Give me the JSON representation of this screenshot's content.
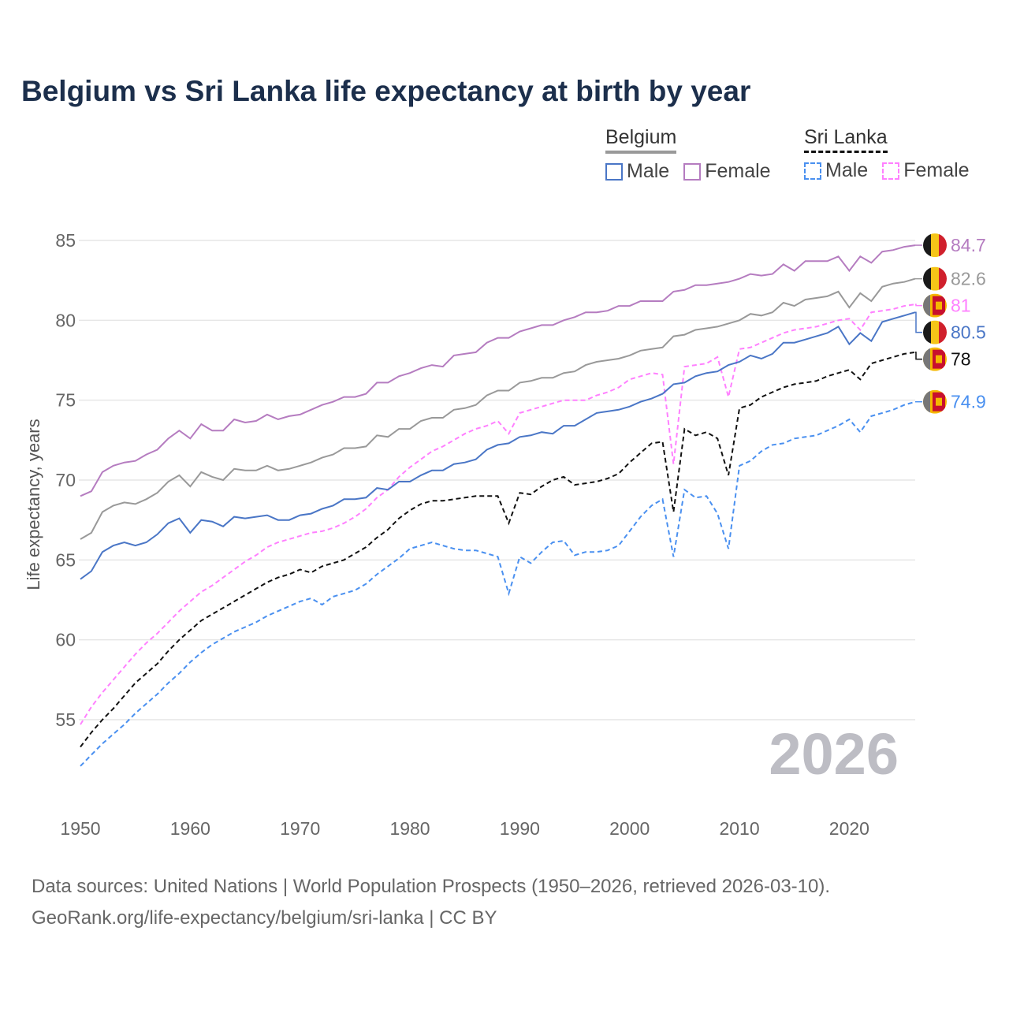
{
  "chart_data": {
    "type": "line",
    "title": "Belgium vs Sri Lanka life expectancy at birth by year",
    "xlabel": "",
    "ylabel": "Life expectancy, years",
    "xlim": [
      1950,
      2026
    ],
    "ylim": [
      51,
      85.5
    ],
    "x_ticks": [
      1950,
      1960,
      1970,
      1980,
      1990,
      2000,
      2010,
      2020
    ],
    "y_ticks": [
      55,
      60,
      65,
      70,
      75,
      80,
      85
    ],
    "year_watermark": "2026",
    "x_start": 1950,
    "legend": {
      "groups": [
        {
          "name": "Belgium",
          "items": [
            "Male",
            "Female"
          ]
        },
        {
          "name": "Sri Lanka",
          "items": [
            "Male",
            "Female"
          ]
        }
      ],
      "placement": "top-right"
    },
    "series": [
      {
        "name": "Belgium Female",
        "country": "Belgium",
        "color": "#b57cc0",
        "dashed": false,
        "end_label": "84.7",
        "values": [
          69.0,
          69.3,
          70.5,
          70.9,
          71.1,
          71.2,
          71.6,
          71.9,
          72.6,
          73.1,
          72.6,
          73.5,
          73.1,
          73.1,
          73.8,
          73.6,
          73.7,
          74.1,
          73.8,
          74.0,
          74.1,
          74.4,
          74.7,
          74.9,
          75.2,
          75.2,
          75.4,
          76.1,
          76.1,
          76.5,
          76.7,
          77.0,
          77.2,
          77.1,
          77.8,
          77.9,
          78.0,
          78.6,
          78.9,
          78.9,
          79.3,
          79.5,
          79.7,
          79.7,
          80.0,
          80.2,
          80.5,
          80.5,
          80.6,
          80.9,
          80.9,
          81.2,
          81.2,
          81.2,
          81.8,
          81.9,
          82.2,
          82.2,
          82.3,
          82.4,
          82.6,
          82.9,
          82.8,
          82.9,
          83.5,
          83.1,
          83.7,
          83.7,
          83.7,
          84.0,
          83.1,
          84.0,
          83.6,
          84.3,
          84.4,
          84.6,
          84.7
        ]
      },
      {
        "name": "Belgium Total",
        "country": "Belgium",
        "color": "#999999",
        "dashed": false,
        "end_label": "82.6",
        "values": [
          66.3,
          66.7,
          68.0,
          68.4,
          68.6,
          68.5,
          68.8,
          69.2,
          69.9,
          70.3,
          69.6,
          70.5,
          70.2,
          70.0,
          70.7,
          70.6,
          70.6,
          70.9,
          70.6,
          70.7,
          70.9,
          71.1,
          71.4,
          71.6,
          72.0,
          72.0,
          72.1,
          72.8,
          72.7,
          73.2,
          73.2,
          73.7,
          73.9,
          73.9,
          74.4,
          74.5,
          74.7,
          75.3,
          75.6,
          75.6,
          76.1,
          76.2,
          76.4,
          76.4,
          76.7,
          76.8,
          77.2,
          77.4,
          77.5,
          77.6,
          77.8,
          78.1,
          78.2,
          78.3,
          79.0,
          79.1,
          79.4,
          79.5,
          79.6,
          79.8,
          80.0,
          80.4,
          80.3,
          80.5,
          81.1,
          80.9,
          81.3,
          81.4,
          81.5,
          81.8,
          80.8,
          81.7,
          81.2,
          82.1,
          82.3,
          82.4,
          82.6
        ]
      },
      {
        "name": "Sri Lanka Female",
        "country": "Sri Lanka",
        "color": "#ff80ff",
        "dashed": true,
        "end_label": "81",
        "values": [
          54.7,
          55.8,
          56.7,
          57.5,
          58.3,
          59.1,
          59.8,
          60.4,
          61.1,
          61.8,
          62.4,
          63.0,
          63.4,
          63.9,
          64.4,
          64.9,
          65.3,
          65.8,
          66.1,
          66.3,
          66.5,
          66.7,
          66.8,
          67.0,
          67.3,
          67.7,
          68.2,
          68.9,
          69.4,
          70.2,
          70.8,
          71.3,
          71.8,
          72.1,
          72.5,
          72.9,
          73.2,
          73.4,
          73.7,
          72.9,
          74.2,
          74.4,
          74.6,
          74.8,
          75.0,
          75.0,
          75.0,
          75.3,
          75.5,
          75.8,
          76.3,
          76.5,
          76.7,
          76.6,
          71.0,
          77.1,
          77.2,
          77.3,
          77.7,
          75.2,
          78.2,
          78.3,
          78.6,
          78.9,
          79.2,
          79.4,
          79.5,
          79.6,
          79.8,
          80.0,
          80.1,
          79.4,
          80.5,
          80.6,
          80.7,
          80.9,
          81.0
        ]
      },
      {
        "name": "Belgium Male",
        "country": "Belgium",
        "color": "#4a76c6",
        "dashed": false,
        "end_label": "80.5",
        "values": [
          63.8,
          64.3,
          65.5,
          65.9,
          66.1,
          65.9,
          66.1,
          66.6,
          67.3,
          67.6,
          66.7,
          67.5,
          67.4,
          67.1,
          67.7,
          67.6,
          67.7,
          67.8,
          67.5,
          67.5,
          67.8,
          67.9,
          68.2,
          68.4,
          68.8,
          68.8,
          68.9,
          69.5,
          69.4,
          69.9,
          69.9,
          70.3,
          70.6,
          70.6,
          71.0,
          71.1,
          71.3,
          71.9,
          72.2,
          72.3,
          72.7,
          72.8,
          73.0,
          72.9,
          73.4,
          73.4,
          73.8,
          74.2,
          74.3,
          74.4,
          74.6,
          74.9,
          75.1,
          75.4,
          76.0,
          76.1,
          76.5,
          76.7,
          76.8,
          77.2,
          77.4,
          77.8,
          77.6,
          77.9,
          78.6,
          78.6,
          78.8,
          79.0,
          79.2,
          79.6,
          78.5,
          79.2,
          78.7,
          79.9,
          80.1,
          80.3,
          80.5
        ]
      },
      {
        "name": "Sri Lanka Total",
        "country": "Sri Lanka",
        "color": "#111111",
        "dashed": true,
        "end_label": "78",
        "values": [
          53.3,
          54.2,
          55.0,
          55.7,
          56.5,
          57.3,
          57.9,
          58.5,
          59.3,
          60.0,
          60.6,
          61.2,
          61.6,
          62.0,
          62.4,
          62.8,
          63.2,
          63.6,
          63.9,
          64.1,
          64.4,
          64.2,
          64.6,
          64.8,
          65.0,
          65.4,
          65.8,
          66.4,
          66.9,
          67.6,
          68.1,
          68.5,
          68.7,
          68.7,
          68.8,
          68.9,
          69.0,
          69.0,
          69.0,
          67.3,
          69.2,
          69.1,
          69.6,
          70.0,
          70.2,
          69.7,
          69.8,
          69.9,
          70.1,
          70.4,
          71.1,
          71.7,
          72.3,
          72.4,
          68.0,
          73.2,
          72.8,
          73.0,
          72.6,
          70.3,
          74.5,
          74.7,
          75.2,
          75.5,
          75.8,
          76.0,
          76.1,
          76.2,
          76.5,
          76.7,
          76.9,
          76.3,
          77.3,
          77.5,
          77.7,
          77.9,
          78.0
        ]
      },
      {
        "name": "Sri Lanka Male",
        "country": "Sri Lanka",
        "color": "#4a90f0",
        "dashed": true,
        "end_label": "74.9",
        "values": [
          52.1,
          52.8,
          53.5,
          54.1,
          54.7,
          55.4,
          56.0,
          56.6,
          57.3,
          57.9,
          58.6,
          59.2,
          59.7,
          60.1,
          60.5,
          60.8,
          61.1,
          61.5,
          61.8,
          62.1,
          62.4,
          62.6,
          62.2,
          62.7,
          62.9,
          63.1,
          63.5,
          64.1,
          64.6,
          65.1,
          65.7,
          65.9,
          66.1,
          65.9,
          65.7,
          65.6,
          65.6,
          65.4,
          65.2,
          62.9,
          65.2,
          64.8,
          65.5,
          66.1,
          66.2,
          65.3,
          65.5,
          65.5,
          65.6,
          65.9,
          66.8,
          67.7,
          68.4,
          68.8,
          65.2,
          69.4,
          68.9,
          69.0,
          67.9,
          65.7,
          70.9,
          71.2,
          71.8,
          72.2,
          72.3,
          72.6,
          72.7,
          72.8,
          73.1,
          73.4,
          73.8,
          73.0,
          74.0,
          74.2,
          74.4,
          74.7,
          74.9
        ]
      }
    ]
  },
  "legend_colors": {
    "be_male": "#4a76c6",
    "be_female": "#b57cc0",
    "sl_male": "#4a90f0",
    "sl_female": "#ff80ff"
  },
  "source": {
    "line1": "Data sources: United Nations | World Population Prospects (1950–2026, retrieved 2026-03-10).",
    "line2": "GeoRank.org/life-expectancy/belgium/sri-lanka | CC BY"
  }
}
